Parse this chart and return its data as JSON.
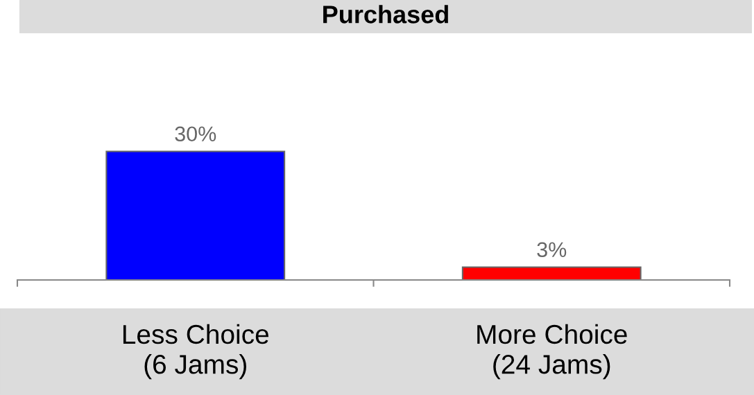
{
  "chart_data": {
    "type": "bar",
    "title": "Purchased",
    "categories": [
      "Less Choice\n(6 Jams)",
      "More Choice\n(24 Jams)"
    ],
    "values": [
      30,
      3
    ],
    "colors": [
      "#0000ff",
      "#ff0000"
    ],
    "value_labels": [
      "30%",
      "3%"
    ],
    "grid": false,
    "legend": false
  }
}
